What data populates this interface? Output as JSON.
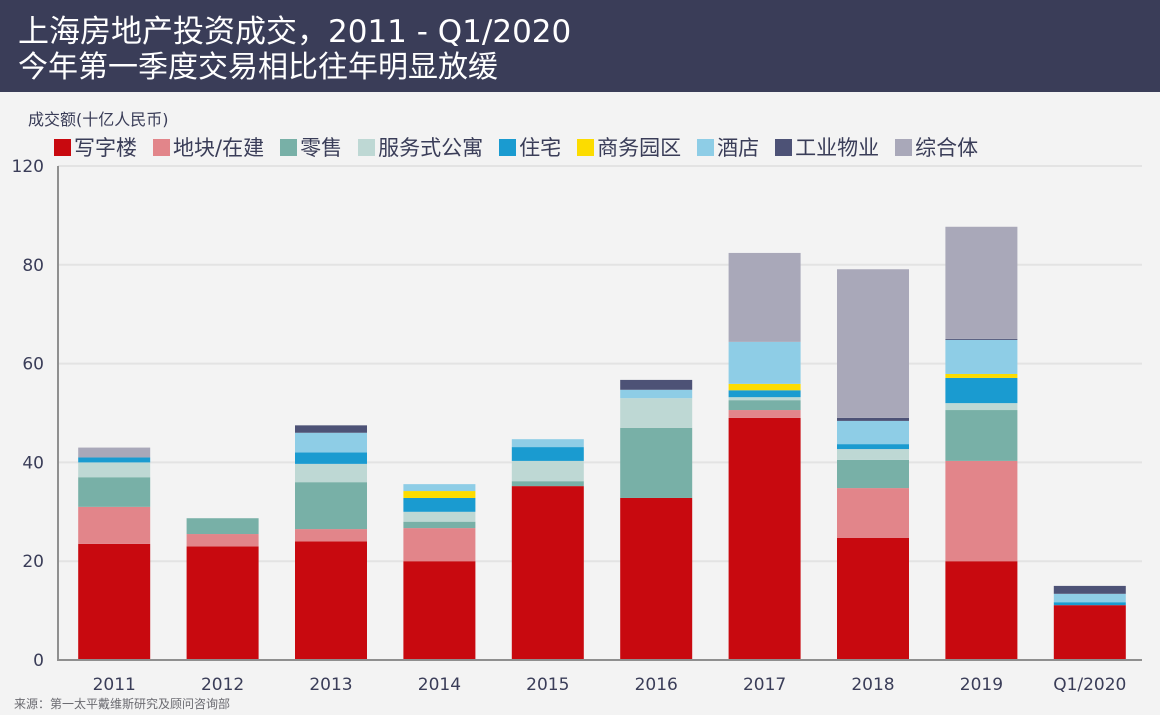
{
  "header": {
    "title": "上海房地产投资成交，2011 - Q1/2020",
    "subtitle": "今年第一季度交易相比往年明显放缓"
  },
  "source": "来源：第一太平戴维斯研究及顾问咨询部",
  "chart_data": {
    "type": "bar",
    "stacked": true,
    "title": "上海房地产投资成交，2011 - Q1/2020",
    "subtitle": "今年第一季度交易相比往年明显放缓",
    "xlabel": "",
    "ylabel": "成交额(十亿人民币)",
    "ylim": [
      0,
      120
    ],
    "yticks": [
      "0",
      "20",
      "40",
      "60",
      "80",
      "120"
    ],
    "grid": true,
    "legend_position": "top",
    "categories": [
      "2011",
      "2012",
      "2013",
      "2014",
      "2015",
      "2016",
      "2017",
      "2018",
      "2019",
      "Q1/2020"
    ],
    "series": [
      {
        "name": "写字楼",
        "color": "#c8090f",
        "values": [
          23.5,
          23.0,
          24.0,
          20.0,
          35.2,
          32.8,
          49.0,
          24.7,
          20.0,
          11.1
        ]
      },
      {
        "name": "地块/在建",
        "color": "#e2858a",
        "values": [
          7.5,
          2.5,
          2.5,
          6.7,
          0,
          0,
          1.6,
          10.1,
          20.3,
          0
        ]
      },
      {
        "name": "零售",
        "color": "#78b0a7",
        "values": [
          6.0,
          3.2,
          9.5,
          1.3,
          1.0,
          14.2,
          2.0,
          5.7,
          10.3,
          0
        ]
      },
      {
        "name": "服务式公寓",
        "color": "#bed8d4",
        "values": [
          3.0,
          0,
          3.7,
          2.0,
          4.1,
          6.0,
          0.6,
          2.2,
          1.4,
          0
        ]
      },
      {
        "name": "住宅",
        "color": "#1a9bd0",
        "values": [
          1.0,
          0,
          2.3,
          2.8,
          2.8,
          0,
          1.4,
          1.0,
          5.1,
          0.6
        ]
      },
      {
        "name": "商务园区",
        "color": "#fcdc00",
        "values": [
          0,
          0,
          0,
          1.4,
          0,
          0,
          1.3,
          0,
          0.8,
          0
        ]
      },
      {
        "name": "酒店",
        "color": "#8ecde6",
        "values": [
          0,
          0,
          4.0,
          1.4,
          1.6,
          1.7,
          8.5,
          4.7,
          6.9,
          1.7
        ]
      },
      {
        "name": "工业物业",
        "color": "#4d5276",
        "values": [
          0,
          0,
          1.5,
          0,
          0,
          2.0,
          0,
          0.6,
          0.2,
          1.6
        ]
      },
      {
        "name": "综合体",
        "color": "#a9a8b9",
        "values": [
          2.0,
          0,
          0,
          0,
          0,
          0,
          18.0,
          30.1,
          22.7,
          0
        ]
      }
    ]
  }
}
